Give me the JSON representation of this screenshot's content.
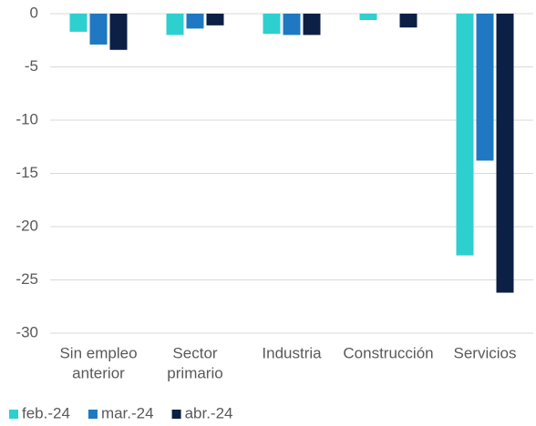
{
  "chart_data": {
    "type": "bar",
    "categories": [
      [
        "Sin empleo",
        "anterior"
      ],
      [
        "Sector",
        "primario"
      ],
      [
        "Industria"
      ],
      [
        "Construcción"
      ],
      [
        "Servicios"
      ]
    ],
    "series": [
      {
        "name": "feb.-24",
        "color": "#2ecfcf",
        "values": [
          -1.7,
          -2.0,
          -1.9,
          -0.6,
          -22.7
        ]
      },
      {
        "name": "mar.-24",
        "color": "#1f78c1",
        "values": [
          -2.9,
          -1.4,
          -2.0,
          0,
          -13.8
        ]
      },
      {
        "name": "abr.-24",
        "color": "#0c1f45",
        "values": [
          -3.4,
          -1.1,
          -2.0,
          -1.3,
          -26.2
        ]
      }
    ],
    "ylim": [
      -30,
      0
    ],
    "yticks": [
      0,
      -5,
      -10,
      -15,
      -20,
      -25,
      -30
    ],
    "grid": true,
    "legend": "bottom"
  }
}
